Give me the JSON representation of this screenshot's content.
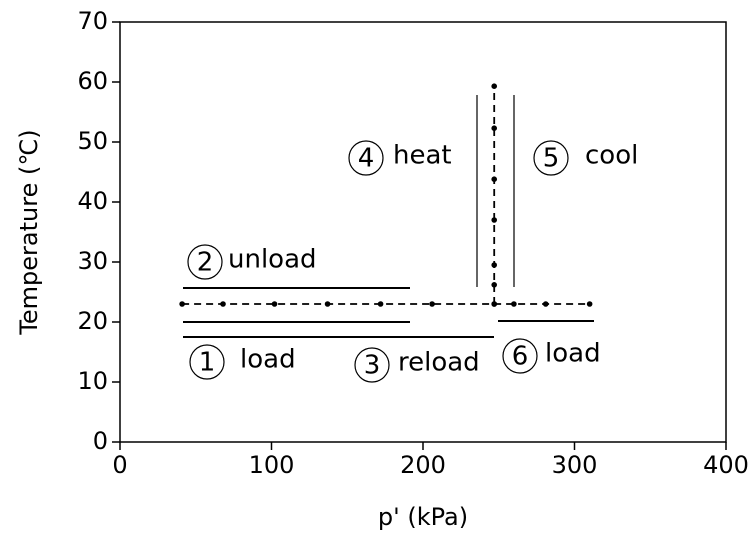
{
  "chart_data": {
    "type": "line",
    "xlabel": "p' (kPa)",
    "ylabel": "Temperature (℃)",
    "xlim": [
      0,
      400
    ],
    "xticks": [
      0,
      100,
      200,
      300,
      400
    ],
    "ylim": [
      0,
      70
    ],
    "yticks": [
      0,
      10,
      20,
      30,
      40,
      50,
      60,
      70
    ],
    "color": "#000000",
    "series": [
      {
        "x": [
          41,
          68,
          102,
          137,
          172,
          206,
          247,
          260,
          281,
          310
        ],
        "values": [
          23,
          23,
          23,
          23,
          23,
          23,
          23,
          23,
          23,
          23
        ]
      },
      {
        "x": [
          247,
          247,
          247,
          247,
          247,
          247,
          247
        ],
        "values": [
          23,
          26.2,
          29.5,
          37,
          43.8,
          52.3,
          59.3
        ]
      }
    ],
    "annotations": [
      {
        "number": "1",
        "text": "load"
      },
      {
        "number": "2",
        "text": "unload"
      },
      {
        "number": "3",
        "text": "reload"
      },
      {
        "number": "4",
        "text": "heat"
      },
      {
        "number": "5",
        "text": "cool"
      },
      {
        "number": "6",
        "text": "load"
      }
    ]
  }
}
